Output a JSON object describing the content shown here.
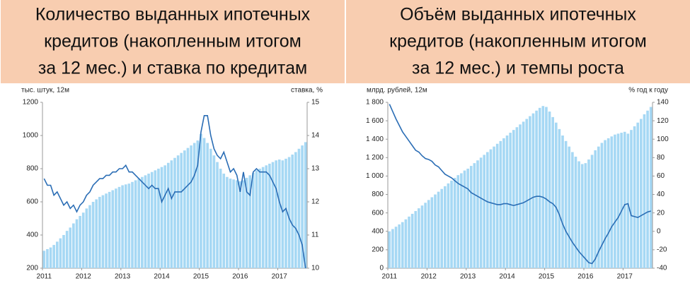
{
  "chart_data": [
    {
      "type": "bar-line",
      "title": "Количество выданных ипотечных кредитов (накопленным итогом за 12 мес.) и ставка по кредитам",
      "title_lines": [
        "Количество выданных ипотечных",
        "кредитов (накопленным итогом",
        "за 12 мес.) и ставка по кредитам"
      ],
      "ylabel": "тыс. штук, 12м",
      "y2label": "ставка, %",
      "categories": [
        "2011",
        null,
        null,
        null,
        null,
        null,
        null,
        null,
        null,
        null,
        null,
        null,
        "2012",
        null,
        null,
        null,
        null,
        null,
        null,
        null,
        null,
        null,
        null,
        null,
        "2013",
        null,
        null,
        null,
        null,
        null,
        null,
        null,
        null,
        null,
        null,
        null,
        "2014",
        null,
        null,
        null,
        null,
        null,
        null,
        null,
        null,
        null,
        null,
        null,
        "2015",
        null,
        null,
        null,
        null,
        null,
        null,
        null,
        null,
        null,
        null,
        null,
        "2016",
        null,
        null,
        null,
        null,
        null,
        null,
        null,
        null,
        null,
        null,
        null,
        "2017",
        null,
        null,
        null,
        null,
        null,
        null,
        null,
        null
      ],
      "ylim": [
        200,
        1200
      ],
      "yticks": [
        200,
        400,
        600,
        800,
        1000,
        1200
      ],
      "y2lim": [
        10,
        15
      ],
      "y2ticks": [
        10,
        11,
        12,
        13,
        14,
        15
      ],
      "series": [
        {
          "type": "bar",
          "color": "#a6d8f4",
          "values": [
            305,
            315,
            325,
            340,
            360,
            380,
            400,
            425,
            445,
            470,
            495,
            515,
            535,
            560,
            580,
            600,
            615,
            630,
            640,
            650,
            660,
            670,
            680,
            690,
            700,
            705,
            710,
            720,
            730,
            740,
            750,
            760,
            770,
            780,
            790,
            800,
            810,
            820,
            835,
            850,
            865,
            880,
            895,
            910,
            925,
            940,
            955,
            970,
            1010,
            985,
            955,
            920,
            880,
            840,
            800,
            770,
            750,
            740,
            735,
            730,
            725,
            730,
            745,
            760,
            775,
            790,
            800,
            810,
            820,
            830,
            840,
            850,
            855,
            850,
            860,
            870,
            885,
            900,
            920,
            940,
            960
          ]
        },
        {
          "type": "line",
          "axis": "y2",
          "color": "#2a6db5",
          "values": [
            12.7,
            12.5,
            12.5,
            12.2,
            12.3,
            12.1,
            11.9,
            12.0,
            11.8,
            11.9,
            11.7,
            11.9,
            12.0,
            12.2,
            12.3,
            12.5,
            12.6,
            12.7,
            12.7,
            12.8,
            12.8,
            12.9,
            12.9,
            13.0,
            13.0,
            13.1,
            12.9,
            12.9,
            12.8,
            12.7,
            12.6,
            12.5,
            12.4,
            12.5,
            12.4,
            12.4,
            12.0,
            12.2,
            12.4,
            12.1,
            12.3,
            12.3,
            12.3,
            12.4,
            12.5,
            12.6,
            12.8,
            13.1,
            14.1,
            14.6,
            14.6,
            14.0,
            13.6,
            13.4,
            13.3,
            13.5,
            13.2,
            12.9,
            13.0,
            12.8,
            12.3,
            12.9,
            12.3,
            12.2,
            12.9,
            13.0,
            12.9,
            12.9,
            12.9,
            12.8,
            12.6,
            12.4,
            12.0,
            11.7,
            11.8,
            11.5,
            11.3,
            11.2,
            11.0,
            10.7,
            10.0
          ]
        }
      ]
    },
    {
      "type": "bar-line",
      "title": "Объём выданных ипотечных кредитов (накопленным итогом за 12 мес.) и темпы роста",
      "title_lines": [
        "Объём выданных ипотечных",
        "кредитов (накопленным итогом",
        "за 12 мес.) и темпы роста"
      ],
      "ylabel": "млрд. рублей, 12м",
      "y2label": "% год к году",
      "categories": [
        "2011",
        null,
        null,
        null,
        null,
        null,
        null,
        null,
        null,
        null,
        null,
        null,
        "2012",
        null,
        null,
        null,
        null,
        null,
        null,
        null,
        null,
        null,
        null,
        null,
        "2013",
        null,
        null,
        null,
        null,
        null,
        null,
        null,
        null,
        null,
        null,
        null,
        "2014",
        null,
        null,
        null,
        null,
        null,
        null,
        null,
        null,
        null,
        null,
        null,
        "2015",
        null,
        null,
        null,
        null,
        null,
        null,
        null,
        null,
        null,
        null,
        null,
        "2016",
        null,
        null,
        null,
        null,
        null,
        null,
        null,
        null,
        null,
        null,
        null,
        "2017",
        null,
        null,
        null,
        null,
        null,
        null,
        null,
        null
      ],
      "ylim": [
        0,
        1800
      ],
      "yticks": [
        0,
        200,
        400,
        600,
        800,
        {
          "value": 1000,
          "label": "1 000"
        },
        {
          "value": 1200,
          "label": "1 200"
        },
        {
          "value": 1400,
          "label": "1 400"
        },
        {
          "value": 1600,
          "label": "1 600"
        },
        {
          "value": 1800,
          "label": "1 800"
        }
      ],
      "y2lim": [
        -40,
        140
      ],
      "y2ticks": [
        -40,
        -20,
        0,
        20,
        40,
        60,
        80,
        100,
        120,
        140
      ],
      "series": [
        {
          "type": "bar",
          "color": "#a6d8f4",
          "values": [
            400,
            425,
            450,
            475,
            500,
            530,
            560,
            590,
            620,
            650,
            680,
            710,
            740,
            770,
            800,
            830,
            860,
            890,
            920,
            950,
            980,
            1010,
            1030,
            1060,
            1080,
            1110,
            1140,
            1170,
            1200,
            1230,
            1260,
            1290,
            1320,
            1350,
            1380,
            1410,
            1440,
            1470,
            1500,
            1530,
            1560,
            1590,
            1620,
            1650,
            1680,
            1710,
            1740,
            1760,
            1750,
            1700,
            1640,
            1580,
            1510,
            1440,
            1380,
            1320,
            1260,
            1210,
            1160,
            1130,
            1140,
            1180,
            1230,
            1280,
            1320,
            1360,
            1390,
            1410,
            1430,
            1450,
            1460,
            1470,
            1480,
            1460,
            1500,
            1540,
            1580,
            1620,
            1670,
            1710,
            1750
          ]
        },
        {
          "type": "line",
          "axis": "y2",
          "color": "#2a6db5",
          "values": [
            138,
            130,
            122,
            115,
            108,
            103,
            98,
            93,
            88,
            86,
            82,
            79,
            78,
            76,
            72,
            70,
            66,
            62,
            60,
            58,
            55,
            52,
            50,
            48,
            46,
            42,
            40,
            38,
            36,
            34,
            32,
            31,
            30,
            29,
            29,
            30,
            30,
            29,
            28,
            29,
            30,
            31,
            33,
            35,
            37,
            38,
            38,
            37,
            35,
            32,
            30,
            26,
            18,
            8,
            0,
            -6,
            -12,
            -17,
            -22,
            -26,
            -30,
            -34,
            -35,
            -30,
            -22,
            -15,
            -8,
            -2,
            5,
            10,
            15,
            22,
            29,
            30,
            17,
            16,
            15,
            17,
            19,
            21,
            22
          ]
        }
      ]
    }
  ]
}
